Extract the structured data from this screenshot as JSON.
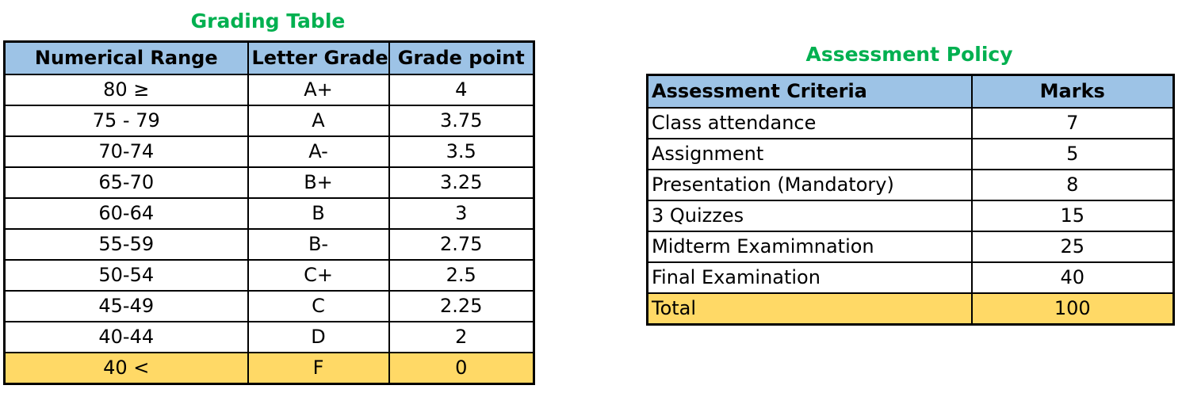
{
  "grading": {
    "title": "Grading Table",
    "headers": [
      "Numerical Range",
      "Letter Grade",
      "Grade point"
    ],
    "rows": [
      [
        "80 ≥",
        "A+",
        "4"
      ],
      [
        "75 - 79",
        "A",
        "3.75"
      ],
      [
        "70-74",
        "A-",
        "3.5"
      ],
      [
        "65-70",
        "B+",
        "3.25"
      ],
      [
        "60-64",
        "B",
        "3"
      ],
      [
        "55-59",
        "B-",
        "2.75"
      ],
      [
        "50-54",
        "C+",
        "2.5"
      ],
      [
        "45-49",
        "C",
        "2.25"
      ],
      [
        "40-44",
        "D",
        "2"
      ],
      [
        "40 <",
        "F",
        "0"
      ]
    ]
  },
  "policy": {
    "title": "Assessment Policy",
    "headers": [
      "Assessment Criteria",
      "Marks"
    ],
    "rows": [
      [
        "Class attendance",
        "7"
      ],
      [
        "Assignment",
        "5"
      ],
      [
        "Presentation (Mandatory)",
        "8"
      ],
      [
        "3 Quizzes",
        "15"
      ],
      [
        "Midterm Examimnation",
        "25"
      ],
      [
        "Final Examination",
        "40"
      ],
      [
        "Total",
        "100"
      ]
    ]
  },
  "colors": {
    "title_green": "#00b050",
    "header_blue": "#9dc3e6",
    "highlight_yellow": "#ffd966"
  }
}
